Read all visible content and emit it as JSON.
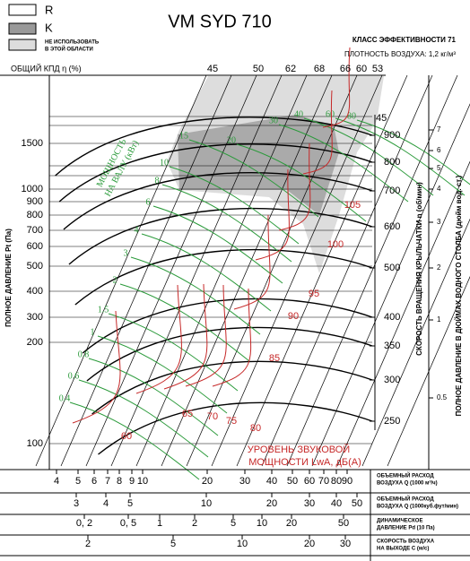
{
  "legend": {
    "items": [
      "R",
      "K"
    ],
    "unusable": [
      "НЕ ИСПОЛЬЗОВАТЬ",
      "В ЭТОЙ ОБЛАСТИ"
    ]
  },
  "title": "VM SYD 710",
  "efficiency_class": "КЛАСС ЭФФЕКТИВНОСТИ 71",
  "air_density": "ПЛОТНОСТЬ ВОЗДУХА: 1,2 кг/м³",
  "efficiency": {
    "label": "ОБЩИЙ КПД η (%)",
    "values": [
      45,
      50,
      62,
      68,
      66,
      60,
      53
    ],
    "right_value": 45
  },
  "pressure_axis": {
    "label": "ПОЛНОЕ ДАВЛЕНИЕ Pt (Па)",
    "ticks": [
      1500,
      1000,
      900,
      800,
      700,
      600,
      500,
      400,
      300,
      200,
      100
    ]
  },
  "speed_axis": {
    "label": "СКОРОСТЬ ВРАЩЕНИЯ КРЫЛЬЧАТКИ n (об/мин)",
    "ticks": [
      900,
      800,
      700,
      600,
      500,
      400,
      350,
      300,
      250
    ]
  },
  "inch_axis": {
    "label": "ПОЛНОЕ ДАВЛЕНИЕ В ДЮЙМАХ ВОДНОГО СТОЛБА (дюйм вод. ст.)",
    "ticks": [
      7,
      6,
      5,
      4,
      3,
      2,
      1,
      0.5
    ]
  },
  "shaft_power": {
    "label": [
      "МОЩНОСТЬ",
      "НА ВАЛУ (кВт)"
    ],
    "values": [
      0.4,
      0.6,
      0.8,
      1,
      1.5,
      2,
      3,
      4,
      6,
      8,
      10,
      15,
      20,
      30,
      40,
      60,
      80
    ]
  },
  "sound_power": {
    "label": [
      "УРОВЕНЬ ЗВУКОВОЙ",
      "МОЩНОСТИ LwA, дБ(А)"
    ],
    "values": [
      60,
      65,
      70,
      75,
      80,
      85,
      90,
      95,
      100,
      105
    ]
  },
  "flow_m3h": {
    "label": [
      "ОБЪЕМНЫЙ РАСХОД",
      "ВОЗДУХА Q (1000 м³/ч)"
    ],
    "ticks": [
      4,
      5,
      6,
      7,
      8,
      9,
      10,
      20,
      30,
      40,
      50,
      60,
      70,
      80,
      90
    ]
  },
  "flow_cfm": {
    "label": [
      "ОБЪЕМНЫЙ РАСХОД",
      "ВОЗДУХА Q (1000куб.фут/мин)"
    ],
    "ticks": [
      3,
      4,
      5,
      10,
      20,
      30,
      40,
      50
    ]
  },
  "dynamic_pressure": {
    "label": [
      "ДИНАМИЧЕСКОЕ",
      "ДАВЛЕНИЕ Pd (10 Па)"
    ],
    "ticks": [
      {
        "value": 0.2,
        "label": "0, 2"
      },
      {
        "value": 0.5,
        "label": "0, 5"
      },
      1,
      2,
      5,
      10,
      20,
      50
    ]
  },
  "velocity": {
    "label": [
      "СКОРОСТЬ ВОЗДУХА",
      "НА ВЫХОДЕ C (м/с)"
    ],
    "ticks": [
      2,
      5,
      10,
      20,
      30
    ]
  }
}
